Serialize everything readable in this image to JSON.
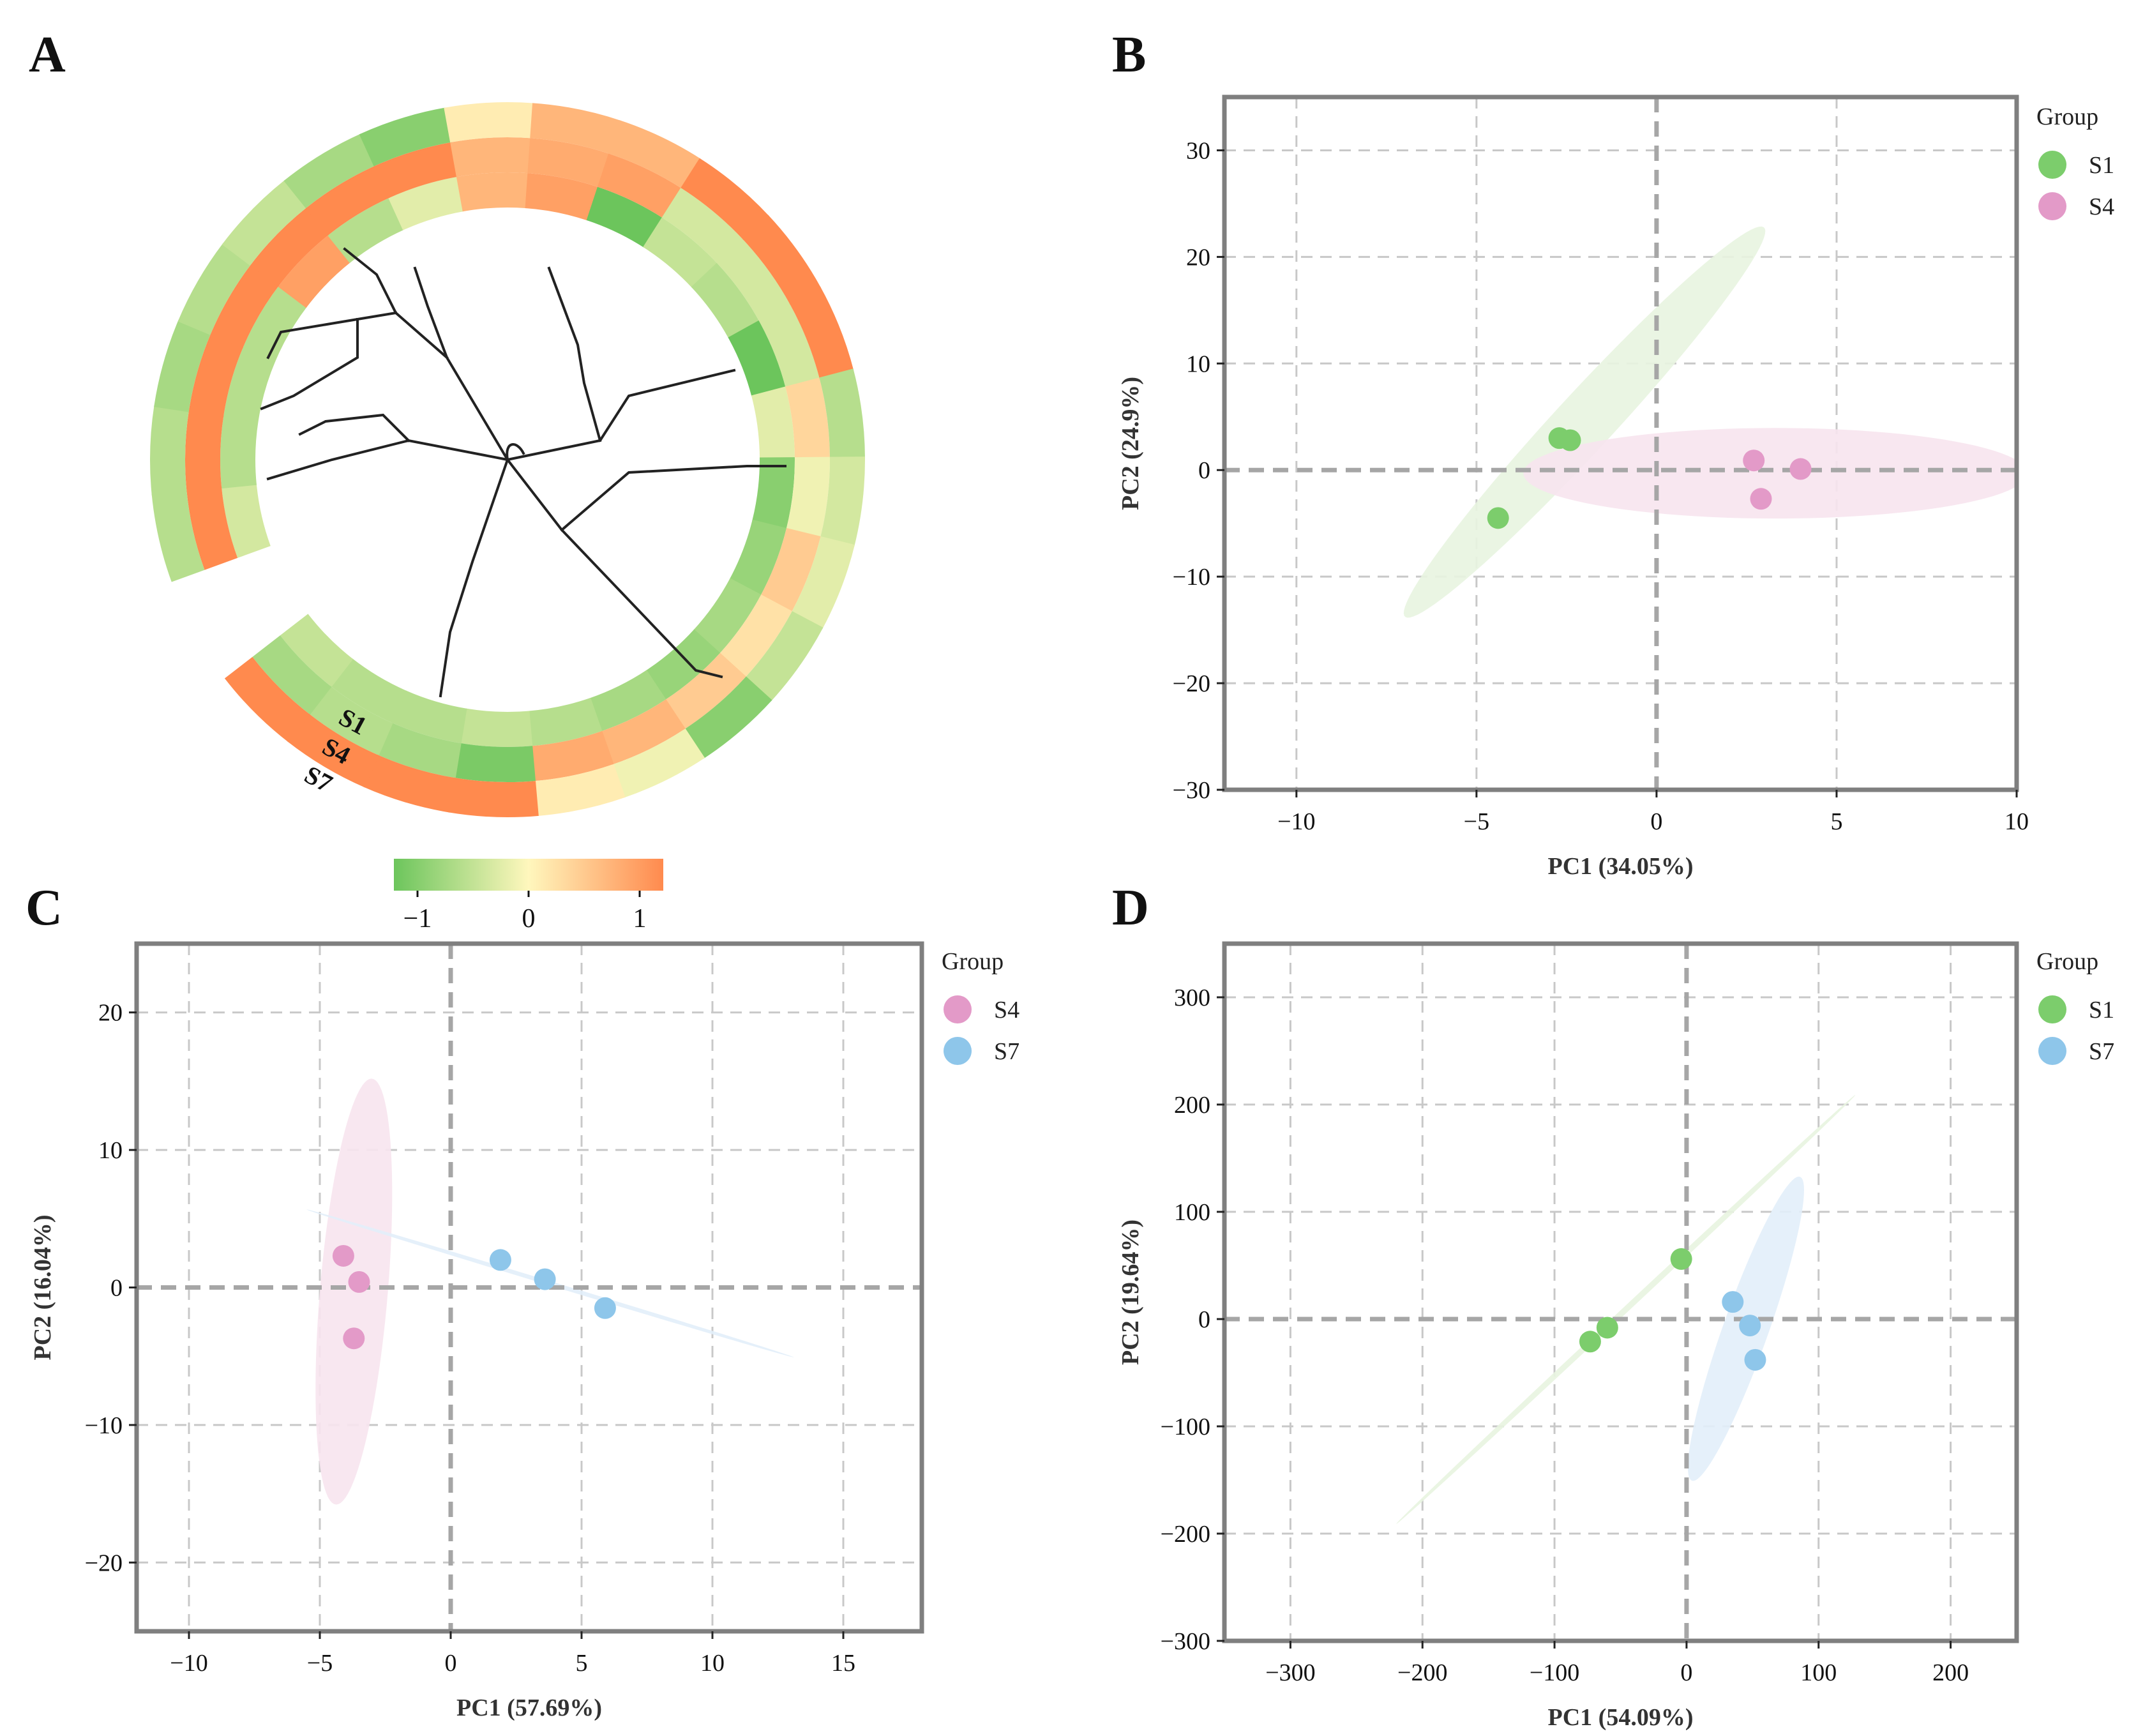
{
  "colors": {
    "S1": "#7ccd6c",
    "S4": "#e39ac8",
    "S7": "#8ec6ea",
    "S1_ellipse": "#e8f4e0",
    "S4_ellipse": "#f7e4ee",
    "S7_ellipse": "#e2eef9",
    "frame": "#7f7f7f",
    "grid": "#c8c8c8",
    "zero": "#a6a6a6"
  },
  "panels": {
    "A": {
      "letter": "A",
      "ring_labels": [
        "S1",
        "S4",
        "S7"
      ],
      "colorbar": {
        "ticks": [
          "−1",
          "0",
          "1"
        ],
        "colors": [
          "#6cc55c",
          "#fff7bd",
          "#ff8a4e"
        ]
      }
    },
    "B": {
      "letter": "B"
    },
    "C": {
      "letter": "C"
    },
    "D": {
      "letter": "D"
    }
  },
  "chart_data": [
    {
      "panel": "A",
      "type": "heatmap",
      "title": "",
      "rings": [
        "S1",
        "S4",
        "S7"
      ],
      "scale": [
        -1,
        1
      ],
      "color_ticks": [
        "−1",
        "0",
        "1"
      ],
      "segments_z": {
        "S1": [
          -0.3,
          -0.5,
          -0.5,
          -0.5,
          0.8,
          -0.5,
          -0.2,
          0.6,
          0.8,
          -1.0,
          -0.4,
          -0.5,
          -1.0,
          -0.2,
          -0.8,
          -0.7,
          -0.6,
          -0.7,
          -0.6,
          -0.5,
          -0.4,
          -0.5,
          -0.5,
          -0.4
        ],
        "S4": [
          1.0,
          1.0,
          1.0,
          1.0,
          1.0,
          1.0,
          1.0,
          0.6,
          0.7,
          0.8,
          -0.3,
          -0.3,
          -0.3,
          0.3,
          -0.1,
          0.4,
          0.2,
          0.4,
          0.6,
          0.7,
          -0.9,
          -0.6,
          -0.5,
          -0.6
        ],
        "S7": [
          -0.5,
          -0.5,
          -0.6,
          -0.5,
          -0.4,
          -0.6,
          -0.8,
          0.1,
          0.6,
          0.6,
          1.0,
          1.0,
          1.0,
          -0.5,
          -0.3,
          -0.2,
          -0.4,
          -0.8,
          -0.1,
          0.1,
          1.0,
          1.0,
          1.0,
          1.0
        ]
      }
    },
    {
      "panel": "B",
      "type": "scatter",
      "title": "",
      "xlabel": "PC1 (34.05%)",
      "ylabel": "PC2 (24.9%)",
      "xlim": [
        -12,
        10
      ],
      "ylim": [
        -30,
        35
      ],
      "xticks": [
        -10,
        -5,
        0,
        5,
        10
      ],
      "yticks": [
        -30,
        -20,
        -10,
        0,
        10,
        20,
        30
      ],
      "legend_title": "Group",
      "series": [
        {
          "name": "S1",
          "points": [
            [
              -4.4,
              -4.5
            ],
            [
              -2.7,
              3.0
            ],
            [
              -2.4,
              2.8
            ]
          ],
          "ellipse": {
            "cx": -2.0,
            "cy": 4.5,
            "major": 38.0,
            "minor": 2.1,
            "angle": 75.0
          }
        },
        {
          "name": "S4",
          "points": [
            [
              2.7,
              0.9
            ],
            [
              4.0,
              0.1
            ],
            [
              2.9,
              -2.7
            ]
          ],
          "ellipse": {
            "cx": 3.3,
            "cy": -0.3,
            "major": 14.0,
            "minor": 8.5,
            "angle": 0.0
          }
        }
      ]
    },
    {
      "panel": "C",
      "type": "scatter",
      "title": "",
      "xlabel": "PC1 (57.69%)",
      "ylabel": "PC2 (16.04%)",
      "xlim": [
        -12,
        18
      ],
      "ylim": [
        -25,
        25
      ],
      "xticks": [
        -10,
        -5,
        0,
        5,
        10,
        15
      ],
      "yticks": [
        -20,
        -10,
        0,
        10,
        20
      ],
      "legend_title": "Group",
      "series": [
        {
          "name": "S4",
          "points": [
            [
              -4.1,
              2.3
            ],
            [
              -3.5,
              0.4
            ],
            [
              -3.7,
              -3.7
            ]
          ],
          "ellipse": {
            "cx": -3.7,
            "cy": -0.3,
            "major": 31.0,
            "minor": 2.6,
            "angle": 87.5
          }
        },
        {
          "name": "S7",
          "points": [
            [
              1.9,
              2.0
            ],
            [
              3.6,
              0.6
            ],
            [
              5.9,
              -1.5
            ]
          ],
          "ellipse": {
            "cx": 3.8,
            "cy": 0.3,
            "major": 21.5,
            "minor": 0.28,
            "angle": -30.0
          }
        }
      ]
    },
    {
      "panel": "D",
      "type": "scatter",
      "title": "",
      "xlabel": "PC1 (54.09%)",
      "ylabel": "PC2 (19.64%)",
      "xlim": [
        -350,
        250
      ],
      "ylim": [
        -300,
        350
      ],
      "xticks": [
        -300,
        -200,
        -100,
        0,
        100,
        200
      ],
      "yticks": [
        -300,
        -200,
        -100,
        0,
        100,
        200,
        300
      ],
      "legend_title": "Group",
      "series": [
        {
          "name": "S1",
          "points": [
            [
              -4,
              56
            ],
            [
              -60,
              -8
            ],
            [
              -73,
              -21
            ]
          ],
          "ellipse": {
            "cx": -46,
            "cy": 9,
            "major": 530,
            "minor": 5,
            "angle": 49.0
          }
        },
        {
          "name": "S7",
          "points": [
            [
              35,
              16
            ],
            [
              48,
              -6
            ],
            [
              52,
              -38
            ]
          ],
          "ellipse": {
            "cx": 45,
            "cy": -9,
            "major": 295,
            "minor": 35,
            "angle": 74.0
          }
        }
      ]
    }
  ]
}
